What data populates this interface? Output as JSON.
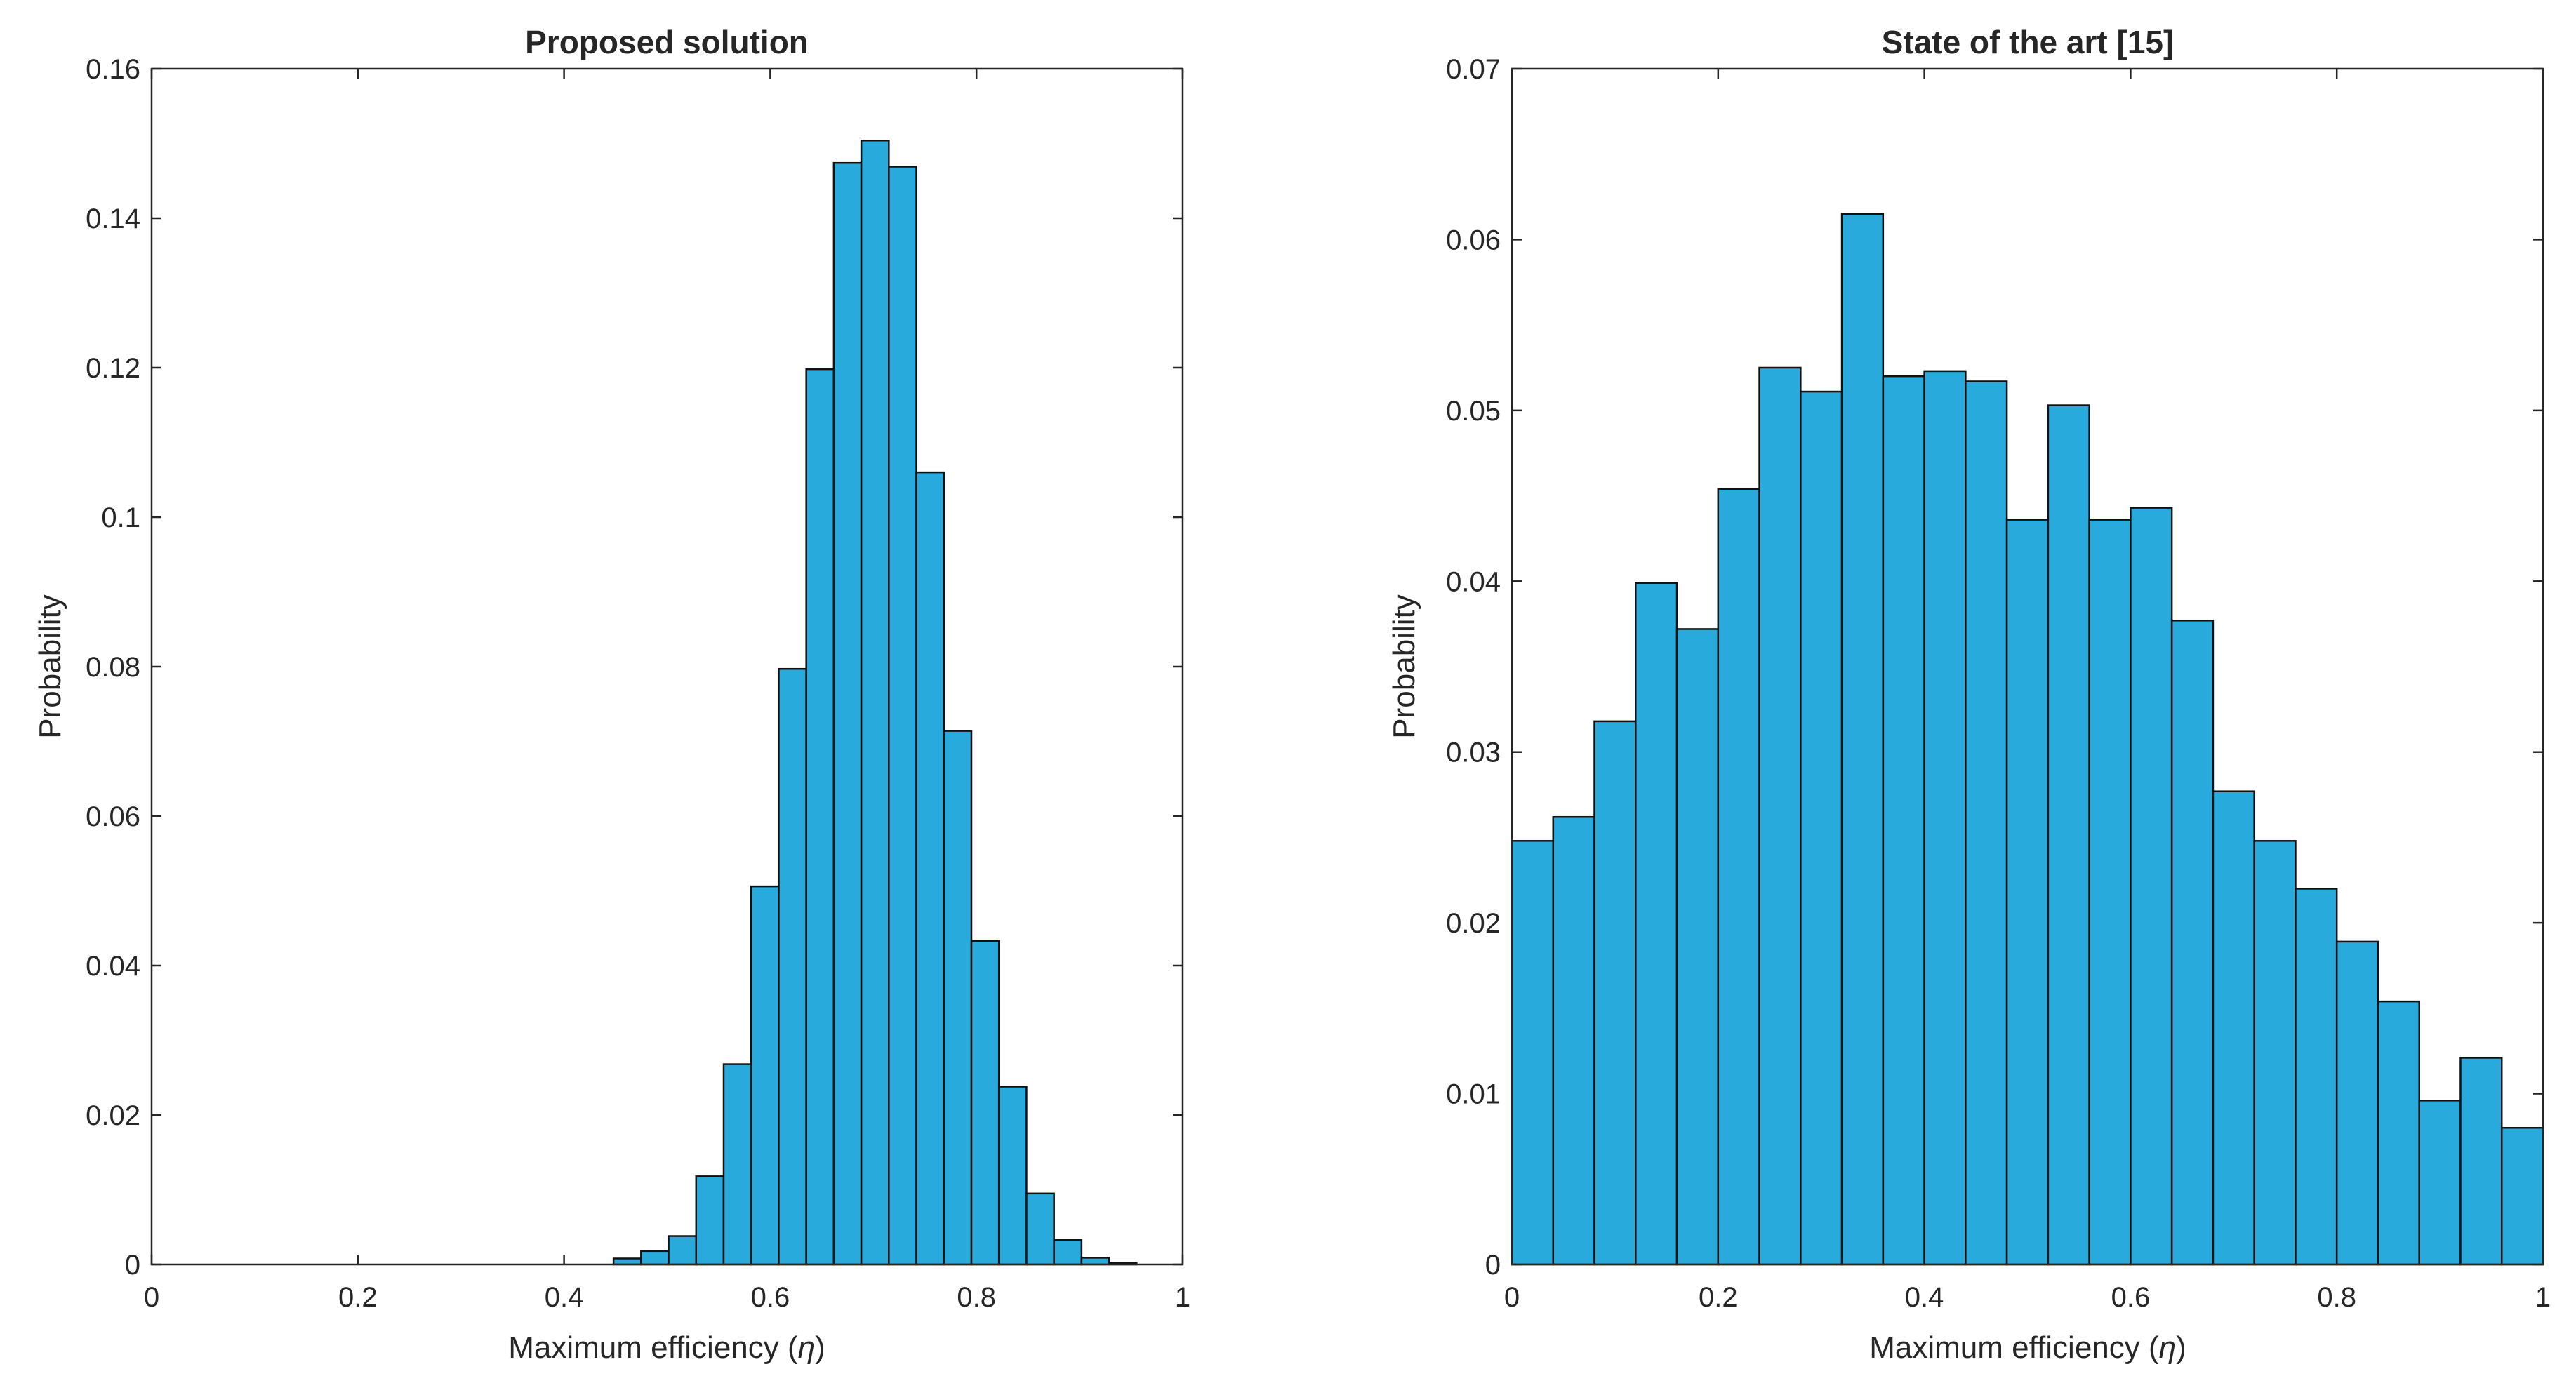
{
  "chart_data": [
    {
      "type": "bar",
      "title": "Proposed solution",
      "xlabel": "Maximum efficiency",
      "xlabel_symbol": "η",
      "ylabel": "Probability",
      "xlim": [
        0,
        1
      ],
      "ylim": [
        0,
        0.16
      ],
      "xticks": [
        "0",
        "0.2",
        "0.4",
        "0.6",
        "0.8",
        "1"
      ],
      "yticks": [
        "0",
        "0.02",
        "0.04",
        "0.06",
        "0.08",
        "0.1",
        "0.12",
        "0.14",
        "0.16"
      ],
      "bin_start": 0.448,
      "bin_width": 0.0267,
      "values": [
        0.0008,
        0.0018,
        0.0038,
        0.0118,
        0.0268,
        0.0506,
        0.0797,
        0.1198,
        0.1474,
        0.1504,
        0.1469,
        0.106,
        0.0714,
        0.0433,
        0.0238,
        0.0095,
        0.0033,
        0.0009,
        0.0002
      ]
    },
    {
      "type": "bar",
      "title": "State of the art [15]",
      "xlabel": "Maximum efficiency",
      "xlabel_symbol": "η",
      "ylabel": "Probability",
      "xlim": [
        0,
        1
      ],
      "ylim": [
        0,
        0.07
      ],
      "xticks": [
        "0",
        "0.2",
        "0.4",
        "0.6",
        "0.8",
        "1"
      ],
      "yticks": [
        "0",
        "0.01",
        "0.02",
        "0.03",
        "0.04",
        "0.05",
        "0.06",
        "0.07"
      ],
      "bin_start": 0,
      "bin_width": 0.04,
      "values": [
        0.0248,
        0.0262,
        0.0318,
        0.0399,
        0.0372,
        0.0454,
        0.0525,
        0.0511,
        0.0615,
        0.052,
        0.0523,
        0.0517,
        0.0436,
        0.0503,
        0.0436,
        0.0443,
        0.0377,
        0.0277,
        0.0248,
        0.022,
        0.0189,
        0.0154,
        0.0096,
        0.0121,
        0.008
      ]
    }
  ]
}
